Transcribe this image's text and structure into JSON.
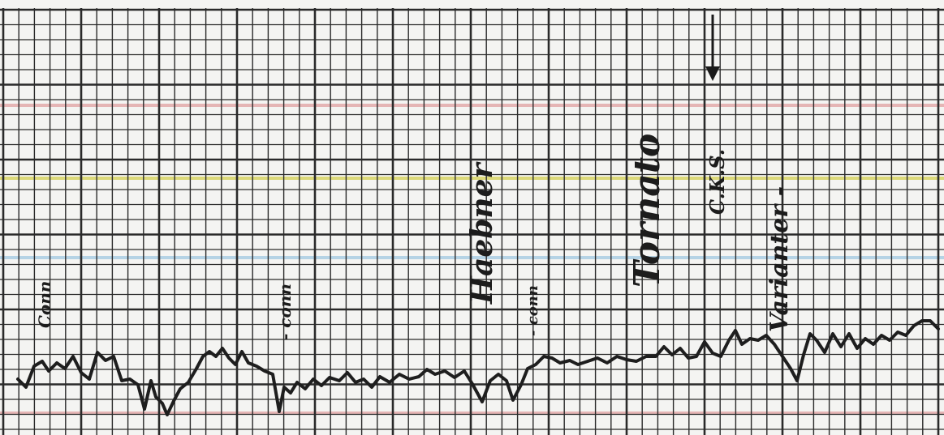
{
  "paper": {
    "background": "#f4f4f2",
    "grid_color": "#2a2a2a",
    "band_colors": [
      "#e0a0a0",
      "#d4d050",
      "#a0c8e0"
    ]
  },
  "annotations": {
    "conn_1": "Conn",
    "conn_2": "- conn",
    "name_1": "Haebner",
    "conn_3": "- conn",
    "name_2": "Tornato",
    "initials": "C.K.S.",
    "name_3": "Varianter -"
  },
  "trace": {
    "color": "#1e1e1e",
    "marker": "down-arrow-icon"
  }
}
